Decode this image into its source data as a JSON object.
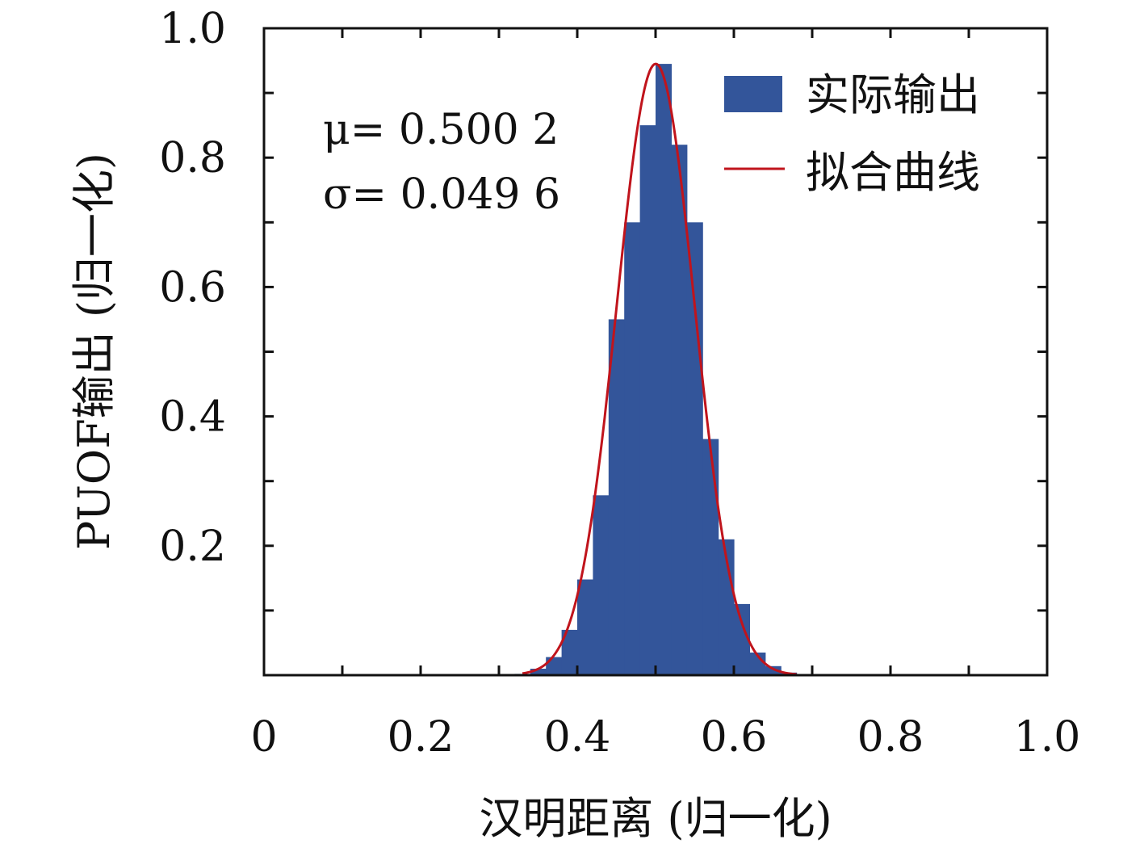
{
  "chart_data": {
    "type": "bar",
    "xlabel": "汉明距离 (归一化)",
    "ylabel": "PUOF输出 (归一化)",
    "xlim": [
      0,
      1.0
    ],
    "ylim": [
      0,
      1.0
    ],
    "xticks": [
      "0",
      "0.2",
      "0.4",
      "0.6",
      "0.8",
      "1.0"
    ],
    "yticks": [
      "0.2",
      "0.4",
      "0.6",
      "0.8",
      "1.0"
    ],
    "bar_width": 0.02,
    "histogram": {
      "name": "实际输出",
      "color": "#33559A",
      "bin_centers": [
        0.33,
        0.35,
        0.37,
        0.39,
        0.41,
        0.43,
        0.45,
        0.47,
        0.49,
        0.51,
        0.53,
        0.55,
        0.57,
        0.59,
        0.61,
        0.63,
        0.65,
        0.67
      ],
      "values": [
        0.002,
        0.01,
        0.028,
        0.07,
        0.148,
        0.278,
        0.55,
        0.7,
        0.85,
        0.945,
        0.82,
        0.7,
        0.365,
        0.21,
        0.11,
        0.035,
        0.014,
        0.004
      ]
    },
    "fit": {
      "name": "拟合曲线",
      "color": "#C0141C",
      "mu": 0.5002,
      "sigma": 0.0496,
      "peak": 0.945,
      "x_range": [
        0.33,
        0.68
      ]
    },
    "annotations": {
      "mu_text": "μ= 0.500 2",
      "sigma_text": "σ= 0.049 6"
    },
    "legend_position": "top-right",
    "grid": false
  }
}
